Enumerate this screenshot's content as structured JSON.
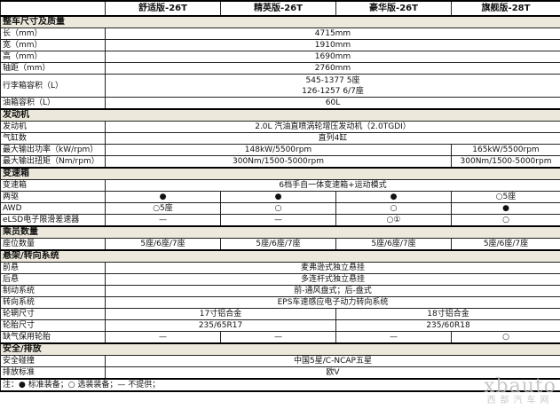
{
  "header": [
    "",
    "舒适版-26T",
    "精英版-26T",
    "豪华版-26T",
    "旗舰版-28T"
  ],
  "rows": [
    {
      "type": "sec",
      "label": "整车尺寸及质量"
    },
    {
      "label": "长（mm）",
      "cells": [
        {
          "text": "4715mm",
          "span": 4
        }
      ]
    },
    {
      "label": "宽（mm）",
      "cells": [
        {
          "text": "1910mm",
          "span": 4
        }
      ]
    },
    {
      "label": "高（mm）",
      "cells": [
        {
          "text": "1690mm",
          "span": 4
        }
      ]
    },
    {
      "label": "轴距（mm）",
      "cells": [
        {
          "text": "2760mm",
          "span": 4
        }
      ]
    },
    {
      "type": "dbl",
      "label": "行李箱容积（L）",
      "cells": [
        {
          "text": "545-1377   5座",
          "text2": "126-1257   6/7座",
          "span": 4
        }
      ]
    },
    {
      "label": "油箱容积（L）",
      "cells": [
        {
          "text": "60L",
          "span": 4
        }
      ]
    },
    {
      "type": "sec",
      "label": "发动机"
    },
    {
      "label": "发动机",
      "cells": [
        {
          "text": "2.0L 汽油直喷涡轮增压发动机（2.0TGDI）",
          "span": 4
        }
      ]
    },
    {
      "label": "气缸数",
      "cells": [
        {
          "text": "直列4缸",
          "span": 4
        }
      ]
    },
    {
      "label": "最大输出功率（kW/rpm）",
      "cells": [
        {
          "text": "148kW/5500rpm",
          "span": 3
        },
        {
          "text": "165kW/5500rpm",
          "span": 1
        }
      ]
    },
    {
      "label": "最大输出扭矩（Nm/rpm）",
      "cells": [
        {
          "text": "300Nm/1500-5000rpm",
          "span": 3
        },
        {
          "text": "300Nm/1500-5000rpm",
          "span": 1
        }
      ]
    },
    {
      "type": "sec",
      "label": "变速箱"
    },
    {
      "label": "变速箱",
      "cells": [
        {
          "text": "6档手自一体变速箱+运动模式",
          "span": 4
        }
      ]
    },
    {
      "label": "两驱",
      "cells": [
        {
          "text": "●",
          "span": 1
        },
        {
          "text": "●",
          "span": 1
        },
        {
          "text": "●",
          "span": 1
        },
        {
          "text": "○5座",
          "span": 1
        }
      ]
    },
    {
      "label": "AWD",
      "cells": [
        {
          "text": "○5座",
          "span": 1
        },
        {
          "text": "○",
          "span": 1
        },
        {
          "text": "○",
          "span": 1
        },
        {
          "text": "●",
          "span": 1
        }
      ]
    },
    {
      "label": "eLSD电子限滑差速器",
      "cells": [
        {
          "text": "—",
          "span": 1
        },
        {
          "text": "—",
          "span": 1
        },
        {
          "text": "○①",
          "span": 1
        },
        {
          "text": "○",
          "span": 1
        }
      ]
    },
    {
      "type": "sec",
      "label": "乘员数量"
    },
    {
      "label": "座位数量",
      "cells": [
        {
          "text": "5座/6座/7座",
          "span": 1
        },
        {
          "text": "5座/6座/7座",
          "span": 1
        },
        {
          "text": "5座/6座/7座",
          "span": 1
        },
        {
          "text": "5座/6座/7座",
          "span": 1
        }
      ]
    },
    {
      "type": "sec",
      "label": "悬架/转向系统"
    },
    {
      "label": "前悬",
      "cells": [
        {
          "text": "麦弗逊式独立悬挂",
          "span": 4
        }
      ]
    },
    {
      "label": "后悬",
      "cells": [
        {
          "text": "多连杆式独立悬挂",
          "span": 4
        }
      ]
    },
    {
      "label": "制动系统",
      "cells": [
        {
          "text": "前-通风盘式；后-盘式",
          "span": 4
        }
      ]
    },
    {
      "label": "转向系统",
      "cells": [
        {
          "text": "EPS车速感应电子动力转向系统",
          "span": 4
        }
      ]
    },
    {
      "label": "轮辋尺寸",
      "cells": [
        {
          "text": "17寸铝合金",
          "span": 2
        },
        {
          "text": "18寸铝合金",
          "span": 2
        }
      ]
    },
    {
      "label": "轮胎尺寸",
      "cells": [
        {
          "text": "235/65R17",
          "span": 2
        },
        {
          "text": "235/60R18",
          "span": 2
        }
      ]
    },
    {
      "label": "缺气保用轮胎",
      "cells": [
        {
          "text": "—",
          "span": 1
        },
        {
          "text": "—",
          "span": 1
        },
        {
          "text": "—",
          "span": 1
        },
        {
          "text": "○",
          "span": 1
        }
      ]
    },
    {
      "type": "sec",
      "label": "安全/排放"
    },
    {
      "label": "安全碰撞",
      "cells": [
        {
          "text": "中国5星/C-NCAP五星",
          "span": 4
        }
      ]
    },
    {
      "label": "排放标准",
      "cells": [
        {
          "text": "欧V",
          "span": 4
        }
      ]
    }
  ],
  "note": "注：● 标准装备；○ 选装装备；— 不提供；",
  "watermark": {
    "main": "xbauto",
    "sub": "西部汽车网"
  }
}
